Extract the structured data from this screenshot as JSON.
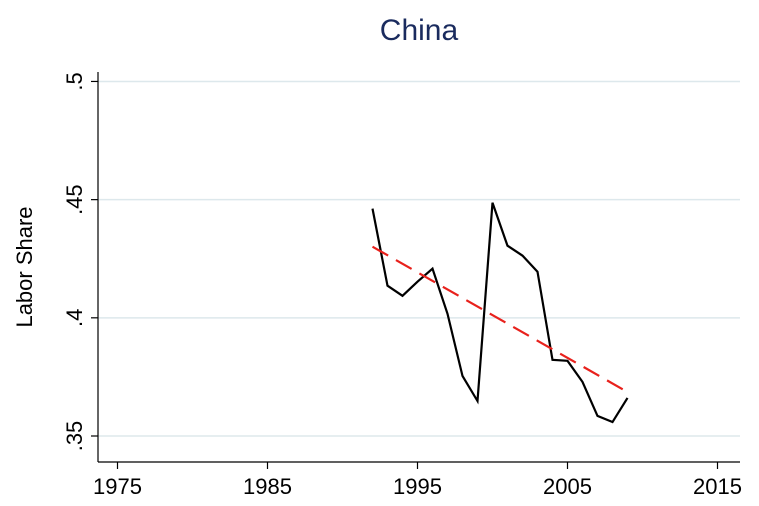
{
  "chart_data": {
    "type": "line",
    "title": "China",
    "y_label": "Labor Share",
    "series": [
      {
        "color": "#000000",
        "dash": "none",
        "x": [
          1992,
          1993,
          1994,
          1995,
          1996,
          1997,
          1998,
          1999,
          2000,
          2001,
          2002,
          2003,
          2004,
          2005,
          2006,
          2007,
          2008,
          2009
        ],
        "values": [
          0.4462,
          0.4136,
          0.4093,
          0.4153,
          0.4208,
          0.4017,
          0.3754,
          0.3648,
          0.4487,
          0.4305,
          0.4263,
          0.4195,
          0.3822,
          0.3818,
          0.3729,
          0.3585,
          0.3559,
          0.3661
        ]
      },
      {
        "color": "#e8211c",
        "dash": "18 9",
        "x": [
          1992,
          2009
        ],
        "values": [
          0.4301,
          0.3686
        ]
      }
    ],
    "xlim": [
      1973.7,
      2016.5
    ],
    "xticks": [
      1975,
      1985,
      1995,
      2005,
      2015
    ],
    "ylim": [
      0.339,
      0.504
    ],
    "yticks": [
      {
        "value": 0.35,
        "label": ".35"
      },
      {
        "value": 0.4,
        "label": ".4"
      },
      {
        "value": 0.45,
        "label": ".45"
      },
      {
        "value": 0.5,
        "label": ".5"
      }
    ],
    "grid": true
  }
}
